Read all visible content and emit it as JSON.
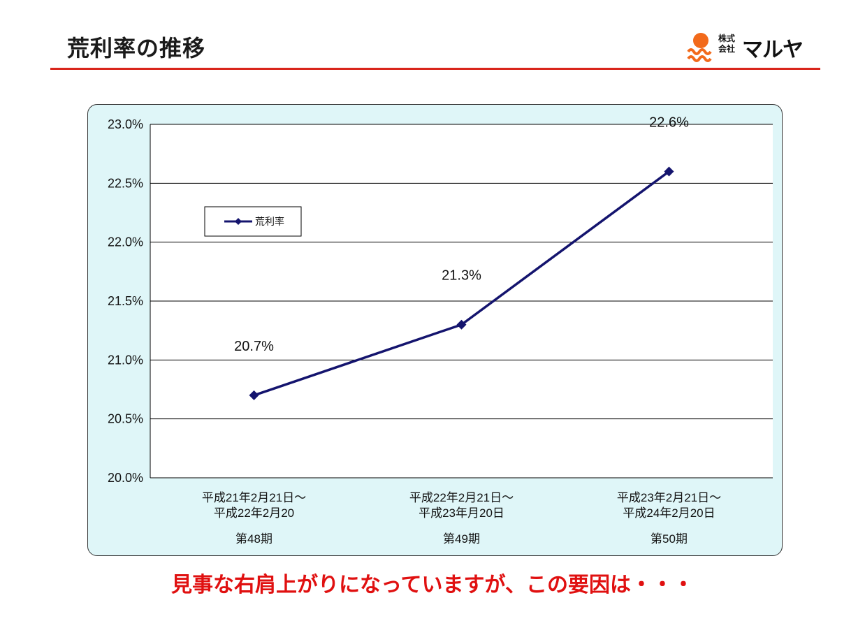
{
  "title": "荒利率の推移",
  "logo": {
    "corp_line1": "株式",
    "corp_line2": "会社",
    "brand": "マルヤ"
  },
  "caption": "見事な右肩上がりになっていますが、この要因は・・・",
  "colors": {
    "title_rule": "#d9261c",
    "panel_bg": "#dff6f8",
    "series": "#14146e",
    "caption": "#e01010",
    "logo_sun": "#f26a1b"
  },
  "chart_data": {
    "type": "line",
    "categories": [
      {
        "period": "平成21年2月21日～",
        "period2": "平成22年2月20",
        "term": "第48期"
      },
      {
        "period": "平成22年2月21日～",
        "period2": "平成23年月20日",
        "term": "第49期"
      },
      {
        "period": "平成23年2月21日～",
        "period2": "平成24年2月20日",
        "term": "第50期"
      }
    ],
    "series": [
      {
        "name": "荒利率",
        "values": [
          20.7,
          21.3,
          22.6
        ],
        "labels": [
          "20.7%",
          "21.3%",
          "22.6%"
        ]
      }
    ],
    "ylim": [
      20.0,
      23.0
    ],
    "yticks": [
      "20.0%",
      "20.5%",
      "21.0%",
      "21.5%",
      "22.0%",
      "22.5%",
      "23.0%"
    ],
    "grid": true,
    "legend": "upper-left"
  }
}
